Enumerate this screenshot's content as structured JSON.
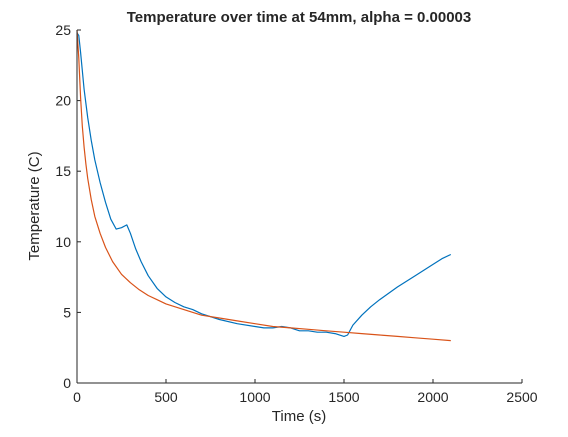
{
  "chart_data": {
    "type": "line",
    "title": "Temperature over time at 54mm, alpha = 0.00003",
    "xlabel": "Time (s)",
    "ylabel": "Temperature (C)",
    "xlim": [
      0,
      2500
    ],
    "ylim": [
      0,
      25
    ],
    "xticks": [
      0,
      500,
      1000,
      1500,
      2000,
      2500
    ],
    "yticks": [
      0,
      5,
      10,
      15,
      20,
      25
    ],
    "grid": false,
    "legend": "none",
    "series": [
      {
        "color": "#0072BD",
        "x": [
          0,
          10,
          20,
          40,
          60,
          80,
          100,
          130,
          160,
          190,
          220,
          250,
          280,
          300,
          330,
          360,
          400,
          450,
          500,
          550,
          600,
          650,
          700,
          800,
          900,
          1000,
          1050,
          1100,
          1150,
          1200,
          1250,
          1300,
          1350,
          1400,
          1450,
          1500,
          1520,
          1550,
          1600,
          1650,
          1700,
          1800,
          1900,
          2000,
          2050,
          2100
        ],
        "y": [
          24.8,
          24.6,
          23.4,
          20.8,
          18.8,
          17.2,
          15.8,
          14.2,
          12.8,
          11.6,
          10.9,
          11.0,
          11.2,
          10.6,
          9.5,
          8.6,
          7.6,
          6.7,
          6.1,
          5.7,
          5.4,
          5.2,
          4.9,
          4.5,
          4.2,
          4.0,
          3.9,
          3.9,
          4.0,
          3.9,
          3.7,
          3.7,
          3.6,
          3.6,
          3.5,
          3.3,
          3.4,
          4.1,
          4.8,
          5.4,
          5.9,
          6.8,
          7.6,
          8.4,
          8.8,
          9.1
        ]
      },
      {
        "color": "#D95319",
        "x": [
          0,
          10,
          20,
          30,
          40,
          50,
          60,
          80,
          100,
          130,
          160,
          200,
          250,
          300,
          350,
          400,
          450,
          500,
          600,
          700,
          800,
          900,
          1000,
          1100,
          1200,
          1300,
          1400,
          1500,
          1600,
          1700,
          1800,
          1900,
          2000,
          2100
        ],
        "y": [
          25.0,
          23.0,
          20.2,
          18.2,
          16.7,
          15.5,
          14.5,
          13.0,
          11.8,
          10.6,
          9.6,
          8.6,
          7.7,
          7.1,
          6.6,
          6.2,
          5.9,
          5.6,
          5.2,
          4.8,
          4.6,
          4.4,
          4.2,
          4.0,
          3.9,
          3.8,
          3.7,
          3.6,
          3.5,
          3.4,
          3.3,
          3.2,
          3.1,
          3.0
        ]
      }
    ]
  }
}
